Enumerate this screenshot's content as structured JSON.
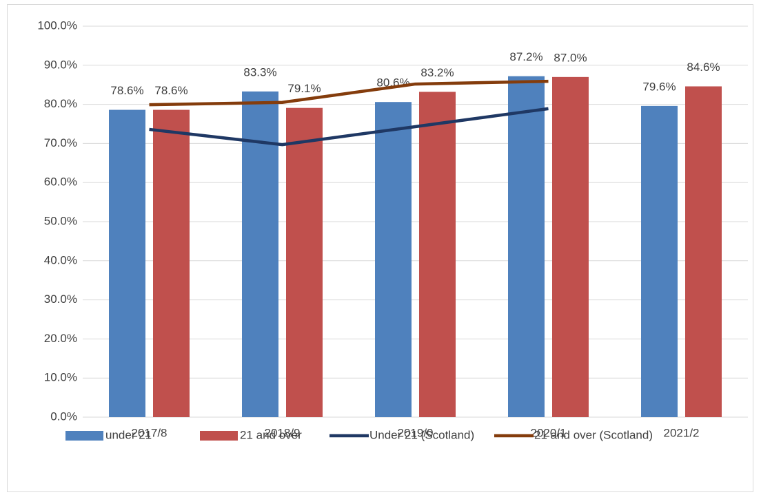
{
  "chart_data": {
    "type": "bar_line",
    "categories": [
      "2017/8",
      "2018/9",
      "2019/0",
      "2020/1",
      "2021/2"
    ],
    "series": [
      {
        "name": "under 21",
        "type": "bar",
        "color": "#4f81bd",
        "values": [
          78.6,
          83.3,
          80.6,
          87.2,
          79.6
        ],
        "value_labels": [
          "78.6%",
          "83.3%",
          "80.6%",
          "87.2%",
          "79.6%"
        ]
      },
      {
        "name": "21 and over",
        "type": "bar",
        "color": "#c0504d",
        "values": [
          78.6,
          79.1,
          83.2,
          87.0,
          84.6
        ],
        "value_labels": [
          "78.6%",
          "79.1%",
          "83.2%",
          "87.0%",
          "84.6%"
        ]
      },
      {
        "name": "Under 21 (Scotland)",
        "type": "line",
        "color": "#1f3864",
        "values": [
          73.6,
          69.7,
          74.3,
          78.9,
          null
        ]
      },
      {
        "name": "21 and over (Scotland)",
        "type": "line",
        "color": "#843c0c",
        "values": [
          79.9,
          80.5,
          85.2,
          85.9,
          null
        ]
      }
    ],
    "ylim": [
      0,
      100
    ],
    "yticks": [
      {
        "value": 0,
        "label": "0.0%"
      },
      {
        "value": 10,
        "label": "10.0%"
      },
      {
        "value": 20,
        "label": "20.0%"
      },
      {
        "value": 30,
        "label": "30.0%"
      },
      {
        "value": 40,
        "label": "40.0%"
      },
      {
        "value": 50,
        "label": "50.0%"
      },
      {
        "value": 60,
        "label": "60.0%"
      },
      {
        "value": 70,
        "label": "70.0%"
      },
      {
        "value": 80,
        "label": "80.0%"
      },
      {
        "value": 90,
        "label": "90.0%"
      },
      {
        "value": 100,
        "label": "100.0%"
      }
    ],
    "grid": true,
    "legend": "bottom"
  }
}
